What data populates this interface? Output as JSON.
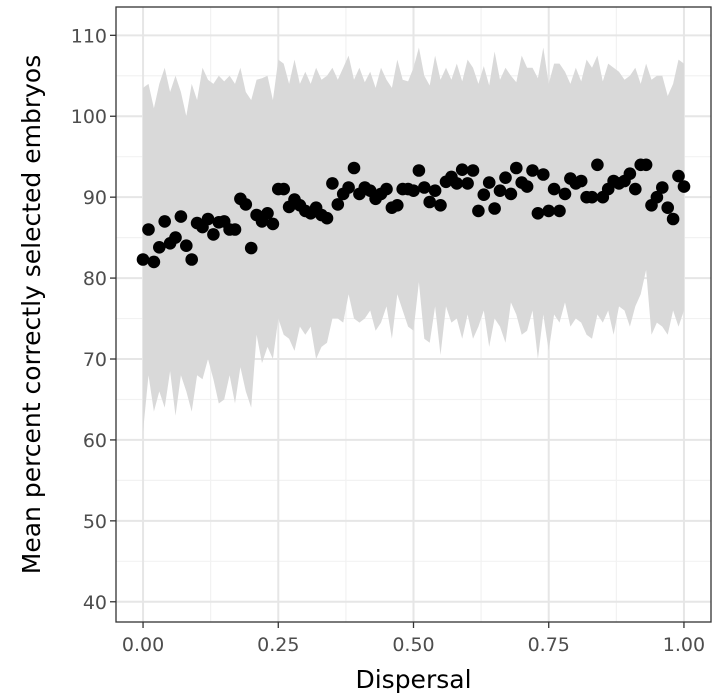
{
  "chart_data": {
    "type": "scatter",
    "xlabel": "Dispersal",
    "ylabel": "Mean percent correctly selected embryos",
    "xlim": [
      -0.05,
      1.05
    ],
    "ylim": [
      37.5,
      113.5
    ],
    "x_ticks": [
      0.0,
      0.25,
      0.5,
      0.75,
      1.0
    ],
    "x_tick_labels": [
      "0.00",
      "0.25",
      "0.50",
      "0.75",
      "1.00"
    ],
    "y_ticks": [
      40,
      50,
      60,
      70,
      80,
      90,
      100,
      110
    ],
    "y_tick_labels": [
      "40",
      "50",
      "60",
      "70",
      "80",
      "90",
      "100",
      "110"
    ],
    "grid": true,
    "point_color": "#000000",
    "ribbon_color": "#d9d9d9",
    "x": [
      0.0,
      0.01,
      0.02,
      0.03,
      0.04,
      0.05,
      0.06,
      0.07,
      0.08,
      0.09,
      0.1,
      0.11,
      0.12,
      0.13,
      0.14,
      0.15,
      0.16,
      0.17,
      0.18,
      0.19,
      0.2,
      0.21,
      0.22,
      0.23,
      0.24,
      0.25,
      0.26,
      0.27,
      0.28,
      0.29,
      0.3,
      0.31,
      0.32,
      0.33,
      0.34,
      0.35,
      0.36,
      0.37,
      0.38,
      0.39,
      0.4,
      0.41,
      0.42,
      0.43,
      0.44,
      0.45,
      0.46,
      0.47,
      0.48,
      0.49,
      0.5,
      0.51,
      0.52,
      0.53,
      0.54,
      0.55,
      0.56,
      0.57,
      0.58,
      0.59,
      0.6,
      0.61,
      0.62,
      0.63,
      0.64,
      0.65,
      0.66,
      0.67,
      0.68,
      0.69,
      0.7,
      0.71,
      0.72,
      0.73,
      0.74,
      0.75,
      0.76,
      0.77,
      0.78,
      0.79,
      0.8,
      0.81,
      0.82,
      0.83,
      0.84,
      0.85,
      0.86,
      0.87,
      0.88,
      0.89,
      0.9,
      0.91,
      0.92,
      0.93,
      0.94,
      0.95,
      0.96,
      0.97,
      0.98,
      0.99,
      1.0
    ],
    "mean": [
      82.3,
      86.0,
      82.0,
      83.8,
      87.0,
      84.3,
      85.0,
      87.6,
      84.0,
      82.3,
      86.8,
      86.3,
      87.3,
      85.4,
      86.9,
      87.0,
      86.0,
      86.0,
      89.8,
      89.1,
      83.7,
      87.8,
      87.0,
      88.0,
      86.7,
      91.0,
      91.0,
      88.8,
      89.7,
      89.0,
      88.3,
      88.0,
      88.7,
      87.8,
      87.4,
      91.7,
      89.1,
      90.4,
      91.2,
      93.6,
      90.4,
      91.2,
      90.8,
      89.8,
      90.4,
      91.0,
      88.7,
      89.0,
      91.0,
      91.0,
      90.8,
      93.3,
      91.2,
      89.4,
      90.8,
      89.0,
      91.9,
      92.5,
      91.7,
      93.4,
      91.7,
      93.3,
      88.3,
      90.3,
      91.8,
      88.6,
      90.8,
      92.4,
      90.4,
      93.6,
      91.8,
      91.3,
      93.3,
      88.0,
      92.8,
      88.3,
      91.0,
      88.3,
      90.4,
      92.3,
      91.7,
      92.0,
      90.0,
      90.0,
      94.0,
      90.0,
      91.0,
      92.0,
      91.7,
      92.0,
      92.9,
      91.0,
      94.0,
      94.0,
      89.0,
      90.0,
      91.2,
      88.7,
      87.3,
      92.6,
      91.3
    ],
    "upper": [
      103.5,
      104,
      101,
      104,
      106,
      103,
      105,
      103,
      100,
      104,
      102,
      106,
      104.5,
      104,
      105,
      104.3,
      105,
      104,
      106,
      103,
      102,
      104.5,
      104.7,
      105,
      102,
      107,
      106.5,
      104,
      107,
      104,
      105.5,
      104,
      106,
      104.5,
      105,
      106,
      104.5,
      106,
      107.5,
      104.5,
      106,
      104.2,
      105.5,
      103.5,
      106,
      104.5,
      103.5,
      107,
      104.5,
      104.3,
      106,
      108.5,
      105,
      103.8,
      107.5,
      104.5,
      106,
      104.5,
      106.5,
      104.3,
      107,
      106,
      104,
      106.2,
      103.8,
      108,
      104.5,
      106,
      105,
      104.2,
      107.5,
      106,
      106,
      104.7,
      108.5,
      104,
      106.5,
      106.5,
      105.5,
      104,
      106,
      104.3,
      107,
      106,
      107.5,
      104.3,
      106.5,
      106,
      105.5,
      104.5,
      105,
      106,
      104,
      106.5,
      104.5,
      105,
      105,
      102.5,
      104,
      107,
      106.5
    ],
    "lower": [
      61,
      68,
      63.5,
      66,
      64,
      68.5,
      63,
      68,
      66,
      63.5,
      68,
      67.5,
      70,
      67.5,
      64.5,
      65,
      68,
      64.5,
      69,
      66,
      64,
      73,
      69.5,
      71.5,
      70,
      75,
      73,
      72.5,
      71,
      74,
      73,
      74,
      70,
      71.5,
      72,
      75,
      75,
      74.5,
      78,
      75,
      74.5,
      75,
      76,
      73.5,
      74.5,
      76.5,
      72.5,
      78,
      76,
      74,
      73.5,
      79.5,
      72.5,
      72,
      76.5,
      70.5,
      76.5,
      74.5,
      75,
      72.5,
      75.5,
      72.5,
      74,
      76,
      71.5,
      75,
      74,
      72,
      77,
      75.5,
      73,
      73.5,
      76,
      70,
      75.5,
      71,
      75.5,
      74.5,
      77,
      74,
      75,
      74.5,
      73,
      72.5,
      75.5,
      74.5,
      76,
      73,
      76.5,
      76,
      74,
      76.5,
      78,
      81,
      73,
      74.5,
      74,
      73,
      76,
      74,
      76
    ]
  }
}
